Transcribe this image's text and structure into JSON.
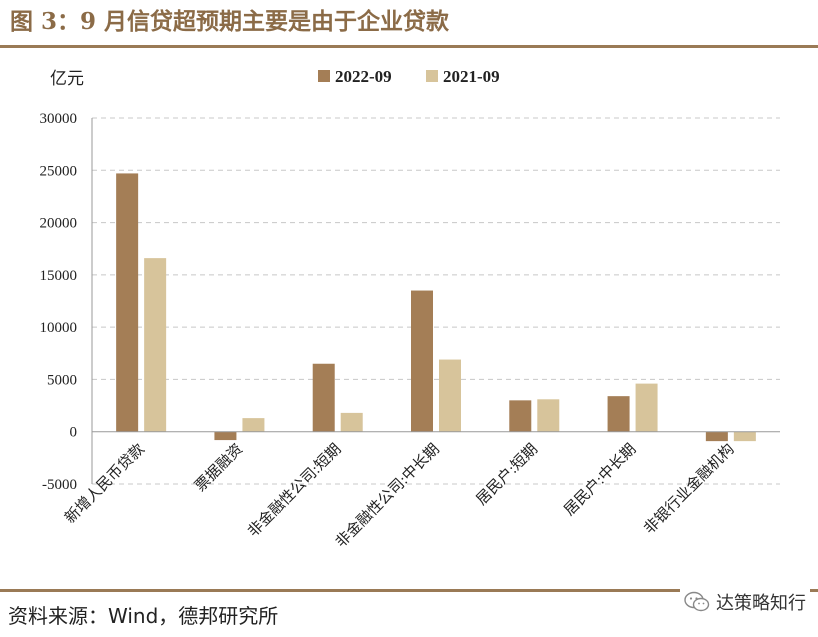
{
  "header": {
    "title": "图 3：9 月信贷超预期主要是由于企业贷款"
  },
  "footer": {
    "source": "资料来源：Wind，德邦研究所",
    "brand": "达策略知行"
  },
  "icons": {
    "brand_icon": "wechat-icon"
  },
  "colors": {
    "accent": "#8B6B47",
    "series_2022": "#A47E56",
    "series_2021": "#D7C49B"
  },
  "chart_data": {
    "type": "bar",
    "title": "",
    "ylabel": "亿元",
    "xlabel": "",
    "categories": [
      "新增人民币贷款",
      "票据融资",
      "非金融性公司:短期",
      "非金融性公司:中长期",
      "居民户:短期",
      "居民户:中长期",
      "非银行业金融机构"
    ],
    "series": [
      {
        "name": "2022-09",
        "values": [
          24700,
          -800,
          6500,
          13500,
          3000,
          3400,
          -900
        ]
      },
      {
        "name": "2021-09",
        "values": [
          16600,
          1300,
          1800,
          6900,
          3100,
          4600,
          -900
        ]
      }
    ],
    "ylim": [
      -5000,
      30000
    ],
    "yticks": [
      30000,
      25000,
      20000,
      15000,
      10000,
      5000,
      0,
      -5000
    ],
    "ytick_labels": [
      "30000",
      "25000",
      "20000",
      "15000",
      "10000",
      "5000",
      "0",
      "-5000"
    ],
    "grid": true,
    "legend_position": "top"
  }
}
